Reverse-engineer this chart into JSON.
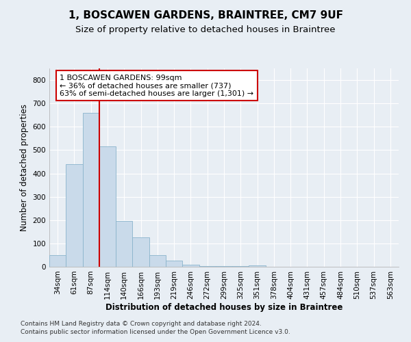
{
  "title": "1, BOSCAWEN GARDENS, BRAINTREE, CM7 9UF",
  "subtitle": "Size of property relative to detached houses in Braintree",
  "xlabel": "Distribution of detached houses by size in Braintree",
  "ylabel": "Number of detached properties",
  "bar_color": "#c9daea",
  "bar_edge_color": "#8ab4cc",
  "vline_color": "#cc0000",
  "vline_x_index": 2,
  "annotation_text": "1 BOSCAWEN GARDENS: 99sqm\n← 36% of detached houses are smaller (737)\n63% of semi-detached houses are larger (1,301) →",
  "annotation_box_color": "white",
  "annotation_box_edge_color": "#cc0000",
  "categories": [
    "34sqm",
    "61sqm",
    "87sqm",
    "114sqm",
    "140sqm",
    "166sqm",
    "193sqm",
    "219sqm",
    "246sqm",
    "272sqm",
    "299sqm",
    "325sqm",
    "351sqm",
    "378sqm",
    "404sqm",
    "431sqm",
    "457sqm",
    "484sqm",
    "510sqm",
    "537sqm",
    "563sqm"
  ],
  "values": [
    50,
    440,
    660,
    515,
    195,
    125,
    50,
    27,
    10,
    3,
    3,
    3,
    7,
    0,
    0,
    0,
    0,
    0,
    0,
    0,
    0
  ],
  "ylim": [
    0,
    850
  ],
  "yticks": [
    0,
    100,
    200,
    300,
    400,
    500,
    600,
    700,
    800
  ],
  "footer_line1": "Contains HM Land Registry data © Crown copyright and database right 2024.",
  "footer_line2": "Contains public sector information licensed under the Open Government Licence v3.0.",
  "background_color": "#e8eef4",
  "plot_bg_color": "#e8eef4",
  "grid_color": "#ffffff",
  "title_fontsize": 11,
  "subtitle_fontsize": 9.5,
  "axis_label_fontsize": 8.5,
  "tick_fontsize": 7.5,
  "annotation_fontsize": 8,
  "footer_fontsize": 6.5
}
